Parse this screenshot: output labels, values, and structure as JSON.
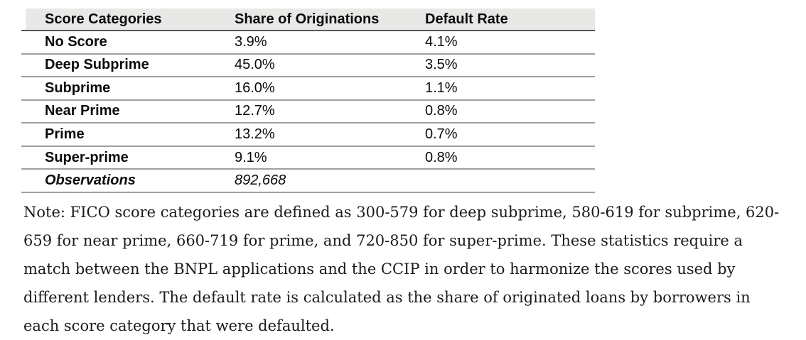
{
  "colors": {
    "header_bg": "#e8e8e6",
    "rule": "#a0a0a0",
    "header_rule": "#58585a",
    "table_text": "#0b0b0b",
    "note_text": "#1b1b1b"
  },
  "table": {
    "columns": [
      {
        "label": "Score Categories"
      },
      {
        "label": "Share of Originations"
      },
      {
        "label": "Default Rate"
      }
    ],
    "rows": [
      {
        "category": "No Score",
        "share": "3.9%",
        "default_rate": "4.1%"
      },
      {
        "category": "Deep Subprime",
        "share": "45.0%",
        "default_rate": "3.5%"
      },
      {
        "category": "Subprime",
        "share": "16.0%",
        "default_rate": "1.1%"
      },
      {
        "category": "Near Prime",
        "share": "12.7%",
        "default_rate": "0.8%"
      },
      {
        "category": "Prime",
        "share": "13.2%",
        "default_rate": "0.7%"
      },
      {
        "category": "Super-prime",
        "share": "9.1%",
        "default_rate": "0.8%"
      }
    ],
    "footer": {
      "label": "Observations",
      "value": "892,668"
    }
  },
  "note": "Note: FICO score categories are defined as 300-579 for deep subprime, 580-619 for subprime, 620-659 for near prime, 660-719 for prime, and 720-850 for super-prime. These statistics require a match between the BNPL applications and the CCIP in order to harmonize the scores used by different lenders. The default rate is calculated as the share of originated loans by borrowers in each score category that were defaulted."
}
